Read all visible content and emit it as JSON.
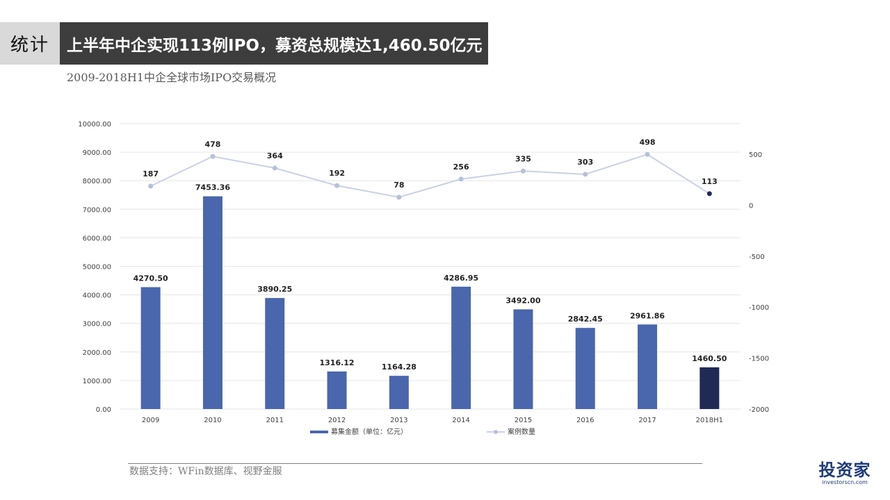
{
  "header": {
    "section_tag": "统计",
    "title": "上半年中企实现113例IPO，募资总规模达1,460.50亿元",
    "subtitle": "2009-2018H1中企全球市场IPO交易概况"
  },
  "footer": {
    "source": "数据支持：WFin数据库、视野金服",
    "logo_text": "投资家",
    "logo_sub": "investorscn.com"
  },
  "colors": {
    "bar": "#4a66ad",
    "bar_highlight": "#1f2a55",
    "line": "#c9d1e3",
    "point": "#b5c0da",
    "point_highlight": "#1f2a55",
    "grid": "#e6e6e6",
    "axis_text": "#404040"
  },
  "chart_data": {
    "type": "bar",
    "categories": [
      "2009",
      "2010",
      "2011",
      "2012",
      "2013",
      "2014",
      "2015",
      "2016",
      "2017",
      "2018H1"
    ],
    "series": [
      {
        "name": "募集金额（单位：亿元）",
        "type": "bar",
        "axis": "left",
        "values": [
          4270.5,
          7453.36,
          3890.25,
          1316.12,
          1164.28,
          4286.95,
          3492.0,
          2842.45,
          2961.86,
          1460.5
        ],
        "labels": [
          "4270.50",
          "7453.36",
          "3890.25",
          "1316.12",
          "1164.28",
          "4286.95",
          "3492.00",
          "2842.45",
          "2961.86",
          "1460.50"
        ]
      },
      {
        "name": "案例数量",
        "type": "line",
        "axis": "right",
        "values": [
          187,
          478,
          364,
          192,
          78,
          256,
          335,
          303,
          498,
          113
        ],
        "labels": [
          "187",
          "478",
          "364",
          "192",
          "78",
          "256",
          "335",
          "303",
          "498",
          "113"
        ]
      }
    ],
    "left_axis": {
      "ylim": [
        0,
        10000
      ],
      "ticks": [
        "0.00",
        "1000.00",
        "2000.00",
        "3000.00",
        "4000.00",
        "5000.00",
        "6000.00",
        "7000.00",
        "8000.00",
        "9000.00",
        "10000.00"
      ]
    },
    "right_axis": {
      "ylim": [
        -2000,
        800
      ],
      "ticks": [
        "-2000",
        "-1500",
        "-1000",
        "-500",
        "0",
        "500"
      ]
    },
    "grid": true,
    "legend_position": "bottom",
    "highlight_category": "2018H1"
  }
}
